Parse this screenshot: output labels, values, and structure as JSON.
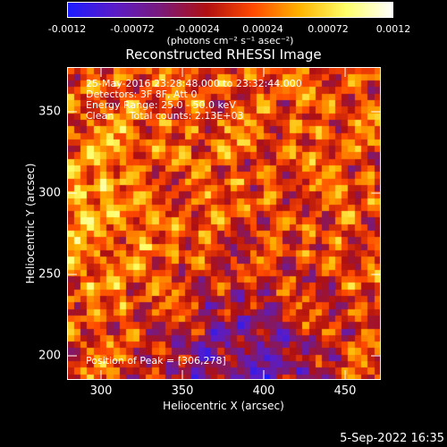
{
  "colorbar": {
    "tick_labels": [
      "-0.0012",
      "-0.00072",
      "-0.00024",
      "0.00024",
      "0.00072",
      "0.0012"
    ],
    "units_label": "(photons cm⁻² s⁻¹ asec⁻²)",
    "range": [
      -0.0012,
      0.0012
    ],
    "colors": [
      "#1c1cff",
      "#5a1cc8",
      "#7a1a7a",
      "#b01010",
      "#ff4a00",
      "#ffb400",
      "#ffff6a",
      "#ffffff"
    ]
  },
  "plot": {
    "title": "Reconstructed RHESSI Image",
    "xlabel": "Heliocentric X (arcsec)",
    "ylabel": "Heliocentric Y (arcsec)",
    "x_ticks": [
      "300",
      "350",
      "400",
      "450"
    ],
    "y_ticks": [
      "350",
      "300",
      "250",
      "200"
    ],
    "x_range": [
      280,
      472
    ],
    "y_range": [
      186,
      378
    ],
    "overlay_lines": [
      "25-May-2016 23:28:48.000 to 23:32:44.000",
      "Detectors: 3F 8F, Att 0",
      "Energy Range: 25.0 - 50.0 keV",
      "Clean     Total counts: 2.13E+03"
    ],
    "peak_label": "Position of Peak = [306,278]"
  },
  "footer": {
    "date_stamp": "5-Sep-2022 16:35"
  }
}
